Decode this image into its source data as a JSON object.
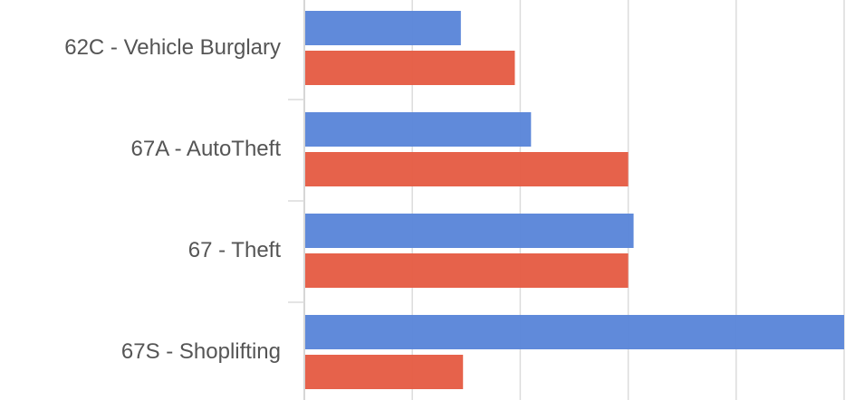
{
  "chart_data": {
    "type": "bar",
    "orientation": "horizontal",
    "categories": [
      "62C - Vehicle Burglary",
      "67A - AutoTheft",
      "67 - Theft",
      "67S - Shoplifting"
    ],
    "series": [
      {
        "values": [
          1.45,
          2.1,
          3.05,
          5.0
        ],
        "color": "#5b86d9"
      },
      {
        "values": [
          1.95,
          3.0,
          3.0,
          1.47
        ],
        "color": "#e55d45"
      }
    ],
    "xlim": [
      0,
      5
    ],
    "grid": true,
    "legend": "none"
  }
}
